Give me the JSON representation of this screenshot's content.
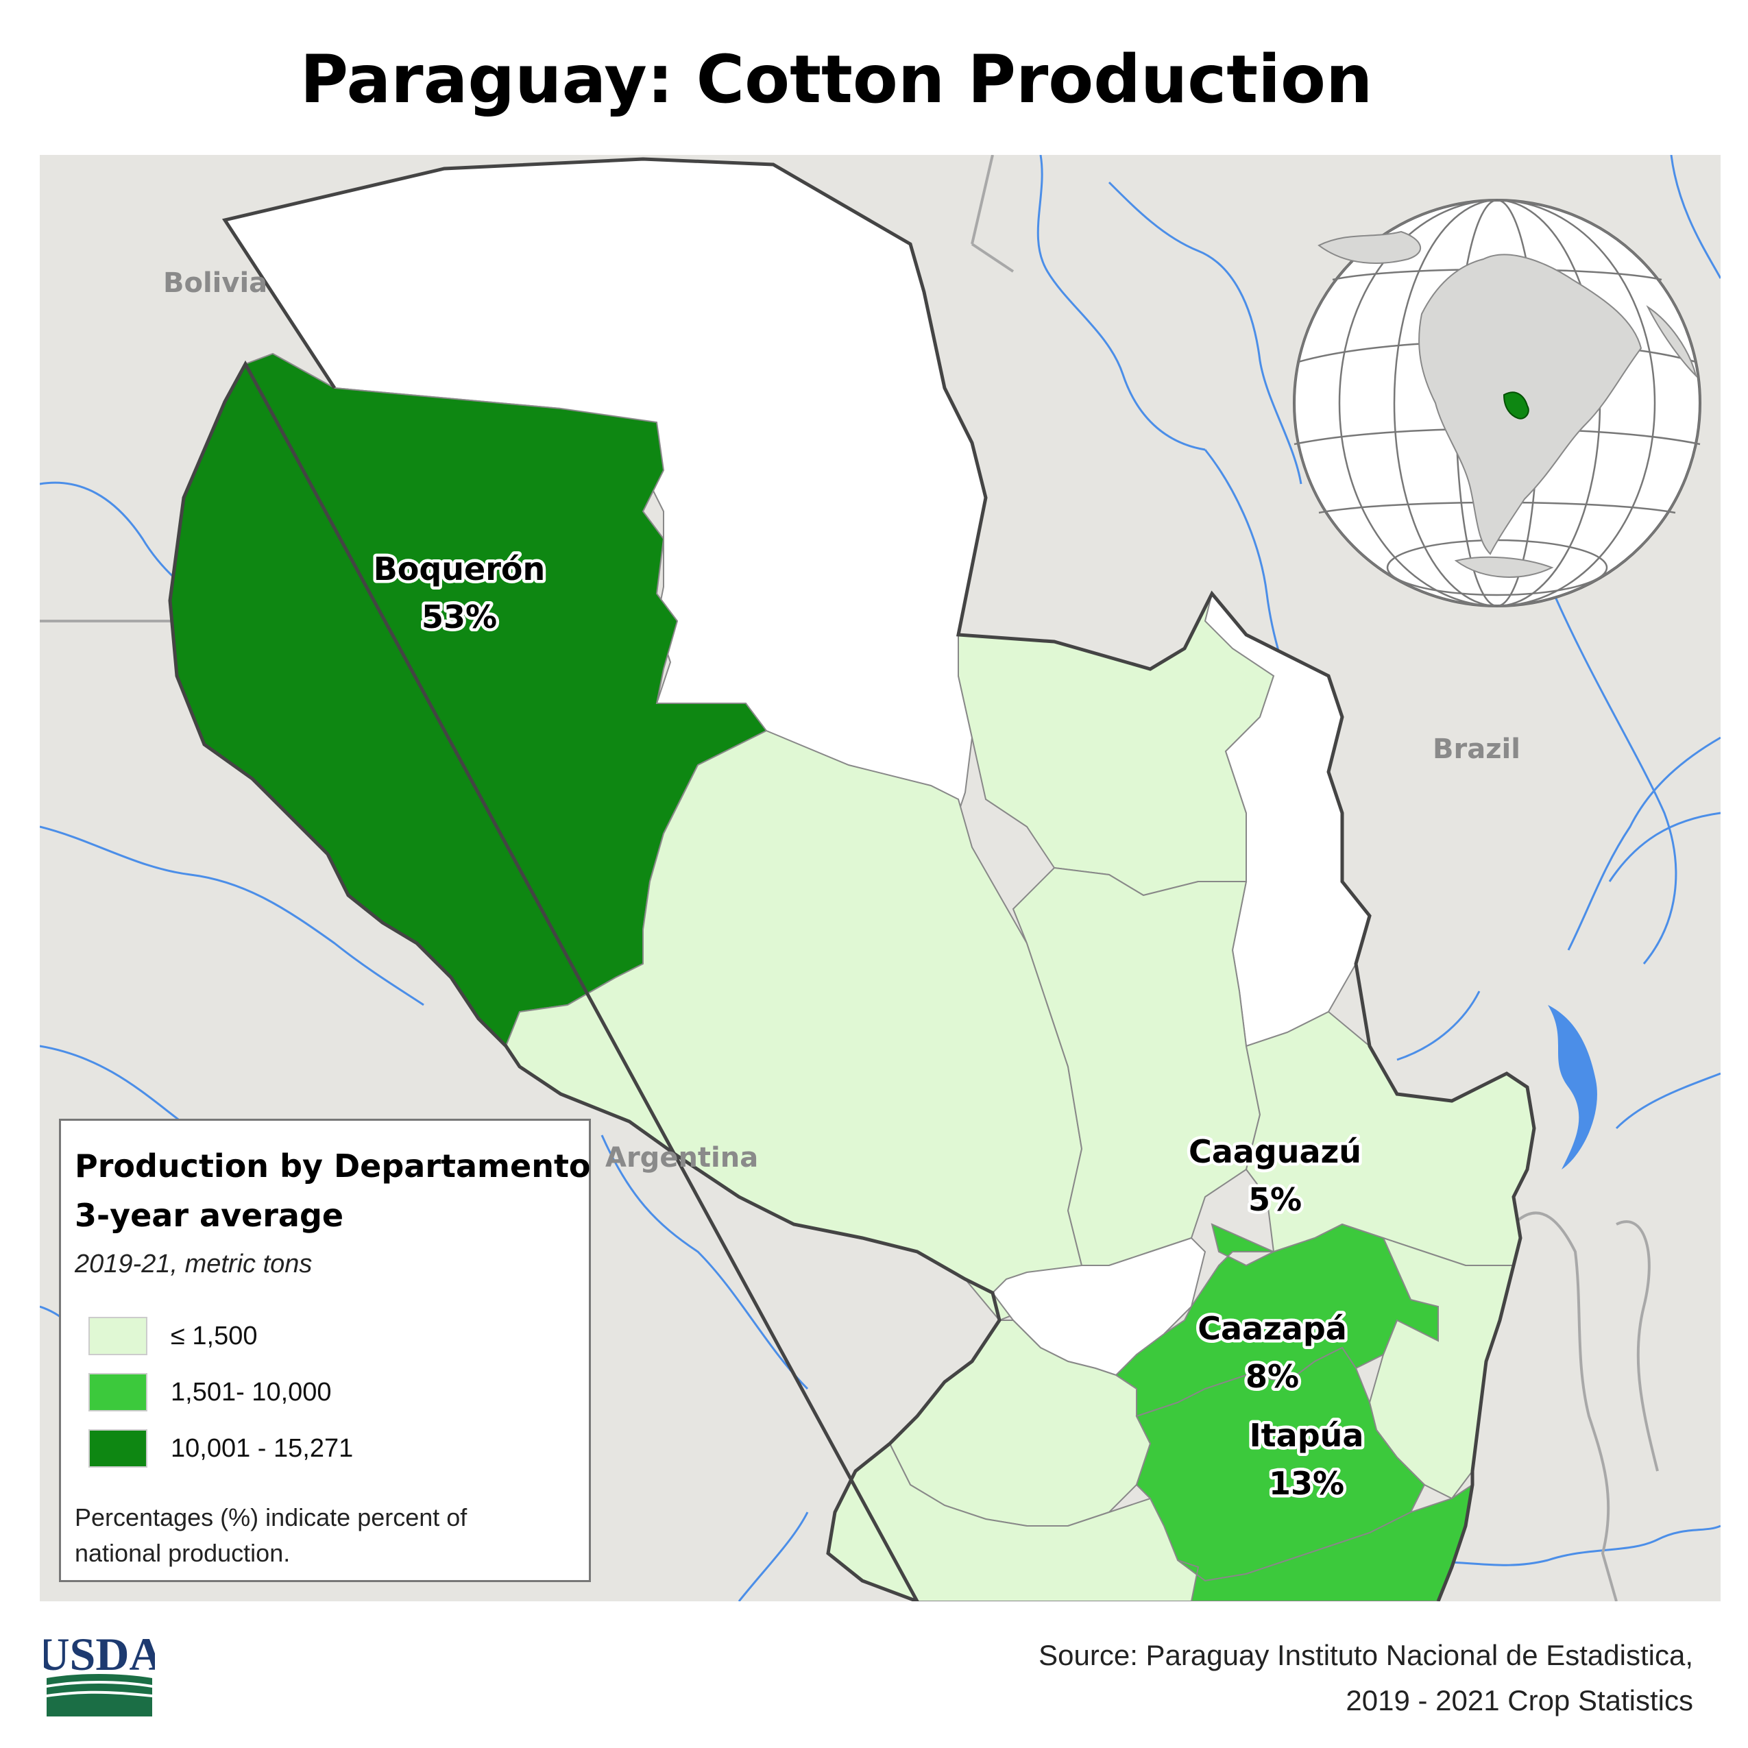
{
  "title": "Paraguay: Cotton Production",
  "countries": {
    "bolivia": "Bolivia",
    "brazil": "Brazil",
    "argentina": "Argentina"
  },
  "departments": [
    {
      "name": "Boquerón",
      "percent": "53%",
      "class": "10,001 - 15,271"
    },
    {
      "name": "Caaguazú",
      "percent": "5%",
      "class": "1,501- 10,000"
    },
    {
      "name": "Caazapá",
      "percent": "8%",
      "class": "1,501- 10,000"
    },
    {
      "name": "Itapúa",
      "percent": "13%",
      "class": "1,501- 10,000"
    }
  ],
  "legend": {
    "title_line1": "Production by Departamento",
    "title_line2": "3-year average",
    "subtitle": "2019-21, metric tons",
    "items": [
      {
        "label": "≤ 1,500",
        "color": "#e0f8d4"
      },
      {
        "label": "1,501- 10,000",
        "color": "#3cc93c"
      },
      {
        "label": "10,001 - 15,271",
        "color": "#0e8712"
      }
    ],
    "note": "Percentages (%) indicate percent of national production."
  },
  "colors": {
    "no_data": "#ffffff",
    "background_land": "#e6e5e1",
    "river": "#4b8ee8",
    "border": "#444444"
  },
  "logo": {
    "text": "USDA",
    "icon": "usda-logo-icon"
  },
  "inset_icon": "globe-locator-icon",
  "source_line1": "Source: Paraguay Instituto Nacional de Estadistica,",
  "source_line2": "2019 - 2021 Crop Statistics"
}
